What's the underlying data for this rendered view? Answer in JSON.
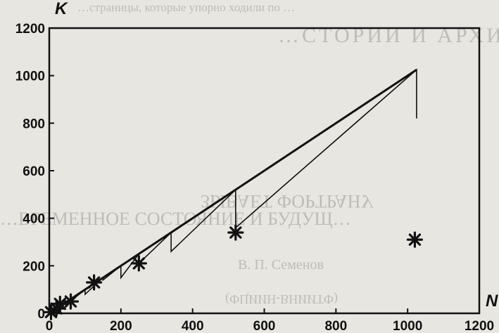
{
  "chart_data": {
    "type": "line",
    "x_axis_label": "N",
    "y_axis_label": "K",
    "xlim": [
      0,
      1200
    ],
    "ylim": [
      0,
      1200
    ],
    "x_ticks": [
      0,
      200,
      400,
      600,
      800,
      1000,
      1200
    ],
    "y_ticks": [
      0,
      200,
      400,
      600,
      800,
      1000,
      1200
    ],
    "grid": false,
    "series": [
      {
        "style": "line",
        "points": [
          [
            0,
            0
          ],
          [
            1025,
            1025
          ]
        ]
      },
      {
        "style": "steps",
        "points": [
          [
            0,
            0
          ],
          [
            30,
            30
          ],
          [
            30,
            20
          ],
          [
            50,
            50
          ],
          [
            50,
            40
          ],
          [
            100,
            100
          ],
          [
            100,
            80
          ],
          [
            150,
            150
          ],
          [
            150,
            140
          ],
          [
            200,
            200
          ],
          [
            200,
            150
          ],
          [
            250,
            250
          ],
          [
            250,
            210
          ],
          [
            340,
            340
          ],
          [
            340,
            260
          ],
          [
            520,
            520
          ],
          [
            520,
            360
          ],
          [
            1025,
            1025
          ],
          [
            1025,
            820
          ]
        ]
      },
      {
        "style": "markers",
        "marker": "asterisk",
        "points": [
          [
            5,
            5
          ],
          [
            20,
            20
          ],
          [
            30,
            40
          ],
          [
            60,
            50
          ],
          [
            125,
            130
          ],
          [
            250,
            210
          ],
          [
            520,
            340
          ],
          [
            1020,
            310
          ]
        ]
      }
    ]
  },
  "background_text": {
    "line_1": "…страницы, которые упорно ходили по …",
    "line_2": "…СТОРИИ И АРХИВОВ",
    "line_3": "…ВРЕМЕННОЕ СОСТОЯНИЕ И БУДУЩ…",
    "line_4": "ЗЫВАЕТ ФОРТРАНУ",
    "line_5": "В. П. Семенов",
    "line_6": "(ФЦИИН-ВНИИТФ)"
  },
  "colors": {
    "ink": "#111111",
    "paper": "#e7e6e1"
  }
}
